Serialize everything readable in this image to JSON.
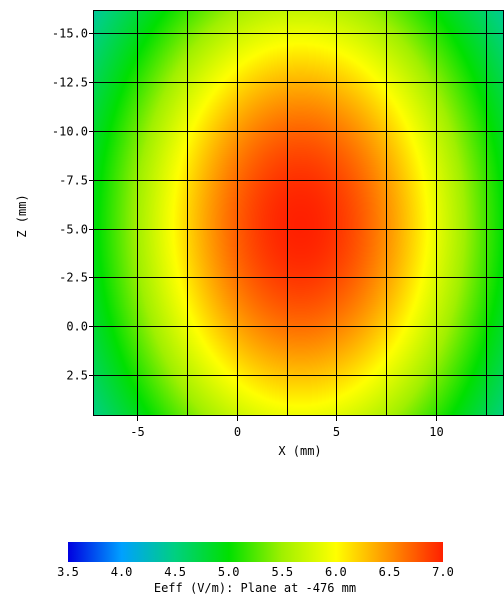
{
  "chart_data": {
    "type": "heatmap",
    "xlabel": "X (mm)",
    "ylabel": "Z (mm)",
    "x_ticks": [
      -5,
      0,
      5,
      10
    ],
    "y_ticks": [
      "-15.0",
      "-12.5",
      "-10.0",
      "-7.5",
      "-5.0",
      "-2.5",
      "0.0",
      "2.5"
    ],
    "y_tick_values": [
      -15.0,
      -12.5,
      -10.0,
      -7.5,
      -5.0,
      -2.5,
      0.0,
      2.5
    ],
    "x_range": [
      -7.2,
      13.4
    ],
    "z_range": [
      -16.2,
      4.6
    ],
    "z_inverted_top_negative": true,
    "grid": true,
    "grid_x_values": [
      -5,
      -2.5,
      0,
      2.5,
      5,
      7.5,
      10,
      12.5
    ],
    "grid_z_values": [
      -15.0,
      -12.5,
      -10.0,
      -7.5,
      -5.0,
      -2.5,
      0.0,
      2.5
    ],
    "field_peak": {
      "x": 3.2,
      "z": -5.2,
      "value": 7.0
    },
    "field_spread": {
      "x": 11.0,
      "z": 16.0
    },
    "field_min_value": 3.5,
    "colorbar": {
      "min": 3.5,
      "max": 7.0,
      "ticks": [
        "3.5",
        "4.0",
        "4.5",
        "5.0",
        "5.5",
        "6.0",
        "6.5",
        "7.0"
      ],
      "tick_values": [
        3.5,
        4.0,
        4.5,
        5.0,
        5.5,
        6.0,
        6.5,
        7.0
      ],
      "colors": [
        "#0000e0",
        "#00a0ff",
        "#00d080",
        "#00e000",
        "#a0f000",
        "#ffff00",
        "#ff9000",
        "#ff2000"
      ],
      "label": "Eeff (V/m): Plane at -476 mm"
    }
  }
}
